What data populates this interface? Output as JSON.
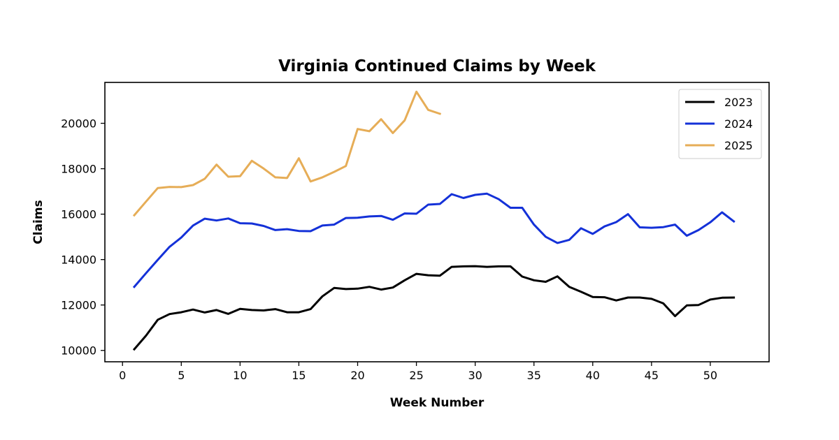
{
  "chart_data": {
    "type": "line",
    "title": "Virginia Continued Claims by Week",
    "xlabel": "Week Number",
    "ylabel": "Claims",
    "xlim": [
      -1.5,
      55
    ],
    "ylim": [
      9500,
      21800
    ],
    "xticks": [
      0,
      5,
      10,
      15,
      20,
      25,
      30,
      35,
      40,
      45,
      50
    ],
    "yticks": [
      10000,
      12000,
      14000,
      16000,
      18000,
      20000
    ],
    "grid": false,
    "legend": "top-right",
    "series": [
      {
        "name": "2023",
        "color": "#000000",
        "x": [
          1,
          2,
          3,
          4,
          5,
          6,
          7,
          8,
          9,
          10,
          11,
          12,
          13,
          14,
          15,
          16,
          17,
          18,
          19,
          20,
          21,
          22,
          23,
          24,
          25,
          26,
          27,
          28,
          29,
          30,
          31,
          32,
          33,
          34,
          35,
          36,
          37,
          38,
          39,
          40,
          41,
          42,
          43,
          44,
          45,
          46,
          47,
          48,
          49,
          50,
          51,
          52
        ],
        "values": [
          10050,
          10650,
          11350,
          11600,
          11680,
          11800,
          11670,
          11780,
          11610,
          11830,
          11780,
          11760,
          11820,
          11680,
          11680,
          11820,
          12380,
          12750,
          12700,
          12720,
          12800,
          12680,
          12770,
          13090,
          13370,
          13310,
          13290,
          13680,
          13700,
          13710,
          13680,
          13700,
          13700,
          13250,
          13090,
          13020,
          13260,
          12800,
          12580,
          12350,
          12340,
          12200,
          12330,
          12330,
          12270,
          12070,
          11510,
          11980,
          12000,
          12240,
          12320,
          12330
        ]
      },
      {
        "name": "2024",
        "color": "#1431d8",
        "x": [
          1,
          2,
          3,
          4,
          5,
          6,
          7,
          8,
          9,
          10,
          11,
          12,
          13,
          14,
          15,
          16,
          17,
          18,
          19,
          20,
          21,
          22,
          23,
          24,
          25,
          26,
          27,
          28,
          29,
          30,
          31,
          32,
          33,
          34,
          35,
          36,
          37,
          38,
          39,
          40,
          41,
          42,
          43,
          44,
          45,
          46,
          47,
          48,
          49,
          50,
          51,
          52
        ],
        "values": [
          12800,
          13400,
          13990,
          14560,
          14970,
          15500,
          15800,
          15720,
          15810,
          15600,
          15590,
          15480,
          15300,
          15340,
          15260,
          15250,
          15500,
          15540,
          15830,
          15840,
          15900,
          15920,
          15750,
          16030,
          16020,
          16420,
          16450,
          16880,
          16710,
          16850,
          16900,
          16660,
          16280,
          16280,
          15540,
          15000,
          14730,
          14870,
          15380,
          15130,
          15460,
          15650,
          16000,
          15420,
          15400,
          15430,
          15540,
          15050,
          15300,
          15640,
          16080,
          15680
        ]
      },
      {
        "name": "2025",
        "color": "#e6ad57",
        "x": [
          1,
          2,
          3,
          4,
          5,
          6,
          7,
          8,
          9,
          10,
          11,
          12,
          13,
          14,
          15,
          16,
          17,
          18,
          19,
          20,
          21,
          22,
          23,
          24,
          25,
          26,
          27
        ],
        "values": [
          15950,
          16550,
          17150,
          17200,
          17190,
          17280,
          17560,
          18180,
          17650,
          17670,
          18350,
          18010,
          17620,
          17590,
          18460,
          17440,
          17620,
          17860,
          18120,
          19750,
          19650,
          20180,
          19570,
          20130,
          21390,
          20590,
          20420
        ]
      }
    ]
  }
}
